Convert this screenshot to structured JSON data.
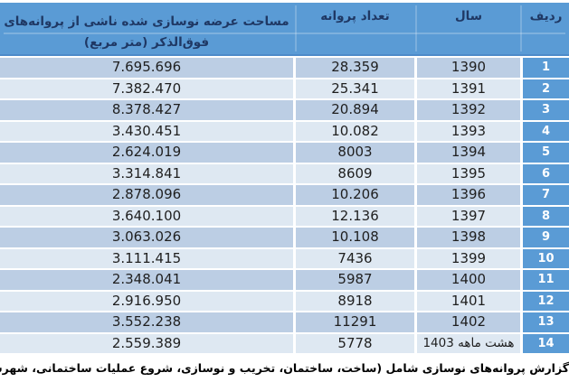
{
  "colors": {
    "header_bg": "#5A9BD5",
    "header_text": "#1F3864",
    "index_cell_bg": "#5A9BD5",
    "index_cell_text": "#FFFFFF",
    "row_odd_bg": "#BCCEE4",
    "row_even_bg": "#DEE8F2",
    "body_text": "#1F1F1F"
  },
  "table": {
    "direction": "rtl",
    "headers": {
      "index": "ردیف",
      "year": "سال",
      "permits": "تعداد پروانه",
      "area_line1": "مساحت عرضه نوسازی شده ناشی از پروانه‌های",
      "area_line2": "فوق‌الذکر (متر مربع)"
    },
    "rows": [
      {
        "index": "1",
        "year": "1390",
        "permits": "28.359",
        "area": "7.695.696"
      },
      {
        "index": "2",
        "year": "1391",
        "permits": "25.341",
        "area": "7.382.470"
      },
      {
        "index": "3",
        "year": "1392",
        "permits": "20.894",
        "area": "8.378.427"
      },
      {
        "index": "4",
        "year": "1393",
        "permits": "10.082",
        "area": "3.430.451"
      },
      {
        "index": "5",
        "year": "1394",
        "permits": "8003",
        "area": "2.624.019"
      },
      {
        "index": "6",
        "year": "1395",
        "permits": "8609",
        "area": "3.314.841"
      },
      {
        "index": "7",
        "year": "1396",
        "permits": "10.206",
        "area": "2.878.096"
      },
      {
        "index": "8",
        "year": "1397",
        "permits": "12.136",
        "area": "3.640.100"
      },
      {
        "index": "9",
        "year": "1398",
        "permits": "10.108",
        "area": "3.063.026"
      },
      {
        "index": "10",
        "year": "1399",
        "permits": "7436",
        "area": "3.111.415"
      },
      {
        "index": "11",
        "year": "1400",
        "permits": "5987",
        "area": "2.348.041"
      },
      {
        "index": "12",
        "year": "1401",
        "permits": "8918",
        "area": "2.916.950"
      },
      {
        "index": "13",
        "year": "1402",
        "permits": "11291",
        "area": "3.552.238"
      },
      {
        "index": "14",
        "year": "هشت ماهه 1403",
        "permits": "5778",
        "area": "2.559.389"
      }
    ]
  },
  "footer": {
    "caption": "گزارش پروانه‌های نوسازی شامل (ساخت، ساختمان، تخریب و نوسازی، شروع عملیات ساختمانی، شهرسازی) بدون رکورد تکراری"
  },
  "chart_data": {
    "type": "table",
    "title": "",
    "caption": "گزارش پروانه‌های نوسازی شامل (ساخت، ساختمان، تخریب و نوسازی، شروع عملیات ساختمانی، شهرسازی) بدون رکورد تکراری",
    "columns": [
      "ردیف",
      "سال",
      "تعداد پروانه",
      "مساحت عرضه نوسازی شده ناشی از پروانه‌های فوق‌الذکر (متر مربع)"
    ],
    "rows": [
      [
        1,
        "1390",
        28359,
        7695696
      ],
      [
        2,
        "1391",
        25341,
        7382470
      ],
      [
        3,
        "1392",
        20894,
        8378427
      ],
      [
        4,
        "1393",
        10082,
        3430451
      ],
      [
        5,
        "1394",
        8003,
        2624019
      ],
      [
        6,
        "1395",
        8609,
        3314841
      ],
      [
        7,
        "1396",
        10206,
        2878096
      ],
      [
        8,
        "1397",
        12136,
        3640100
      ],
      [
        9,
        "1398",
        10108,
        3063026
      ],
      [
        10,
        "1399",
        7436,
        3111415
      ],
      [
        11,
        "1400",
        5987,
        2348041
      ],
      [
        12,
        "1401",
        8918,
        2916950
      ],
      [
        13,
        "1402",
        11291,
        3552238
      ],
      [
        14,
        "هشت ماهه 1403",
        5778,
        2559389
      ]
    ]
  }
}
